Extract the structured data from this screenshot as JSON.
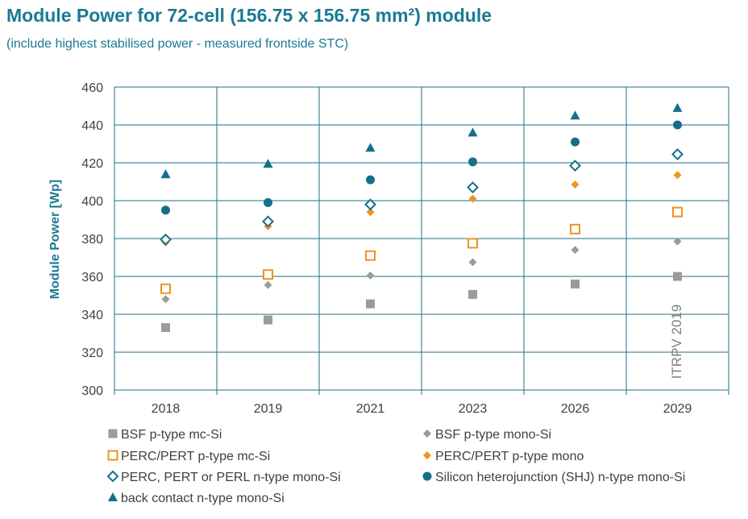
{
  "chart_data": {
    "type": "scatter",
    "title": "Module Power for 72-cell (156.75 x 156.75 mm²) module",
    "subtitle": "(include highest stabilised power - measured frontside STC)",
    "ylabel": "Module Power [Wp]",
    "xlabel": "",
    "categories": [
      "2018",
      "2019",
      "2021",
      "2023",
      "2026",
      "2029"
    ],
    "ylim": [
      300,
      460
    ],
    "yticks": [
      300,
      320,
      340,
      360,
      380,
      400,
      420,
      440,
      460
    ],
    "grid": true,
    "legend_position": "bottom",
    "watermark": "ITRPV 2019",
    "series": [
      {
        "name": "BSF p-type mc-Si",
        "marker": "square-filled",
        "color": "#9b9b9b",
        "values": [
          333,
          337,
          345.5,
          350.5,
          356,
          360
        ]
      },
      {
        "name": "BSF  p-type mono-Si",
        "marker": "diamond-filled",
        "color": "#9b9b9b",
        "values": [
          348,
          355.5,
          360.5,
          367.5,
          374,
          378.5
        ]
      },
      {
        "name": "PERC/PERT p-type mc-Si",
        "marker": "square-open",
        "color": "#f0931e",
        "values": [
          353.5,
          361,
          371,
          377.5,
          385,
          394
        ]
      },
      {
        "name": "PERC/PERT p-type mono",
        "marker": "diamond-filled",
        "color": "#f0931e",
        "values": [
          378,
          386.5,
          394,
          401,
          408.5,
          413.5
        ]
      },
      {
        "name": "PERC, PERT or PERL n-type mono-Si",
        "marker": "diamond-open",
        "color": "#156f8a",
        "values": [
          379.5,
          389,
          398,
          407,
          418.5,
          424.5
        ]
      },
      {
        "name": "Silicon heterojunction (SHJ) n-type mono-Si",
        "marker": "circle-filled",
        "color": "#156f8a",
        "values": [
          395,
          399,
          411,
          420.5,
          431,
          440
        ]
      },
      {
        "name": "back contact n-type mono-Si",
        "marker": "triangle-filled",
        "color": "#156f8a",
        "values": [
          414,
          419.5,
          428,
          436,
          445,
          449
        ]
      }
    ]
  }
}
